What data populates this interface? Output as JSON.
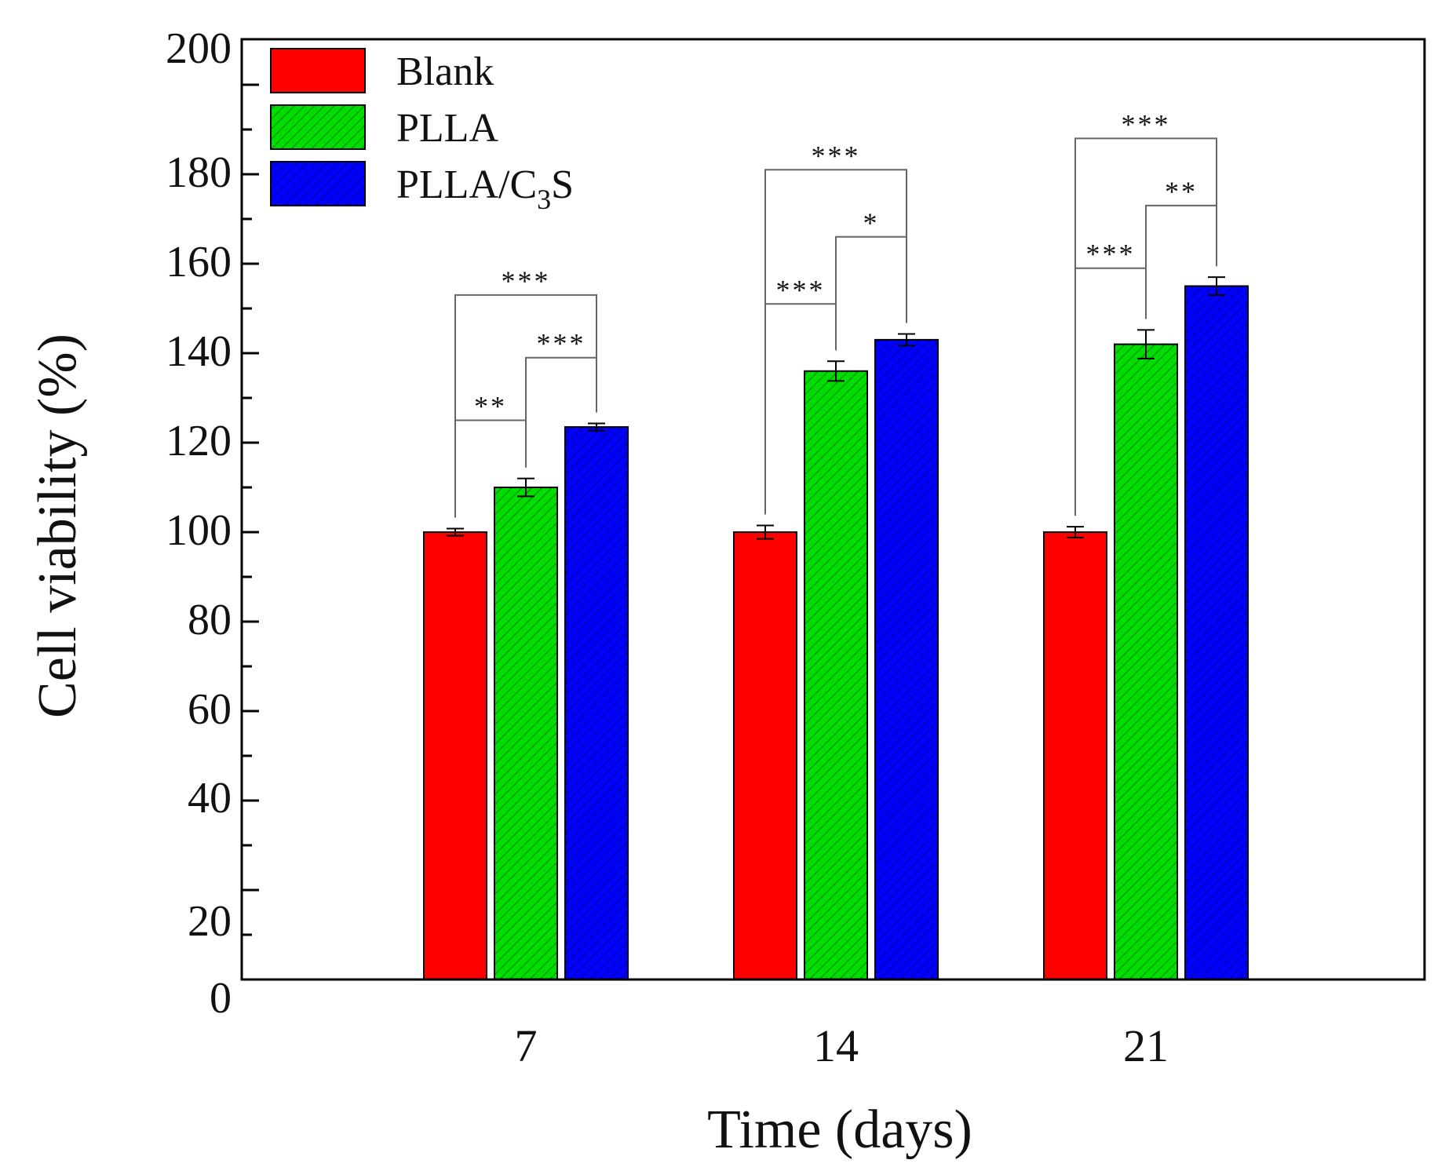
{
  "chart_data": {
    "type": "bar",
    "title": "",
    "xlabel": "Time (days)",
    "ylabel": "Cell viability (%)",
    "ylim": [
      0,
      210
    ],
    "grid": false,
    "legend_position": "top-left",
    "categories": [
      "7",
      "14",
      "21"
    ],
    "y_ticks": [
      {
        "value": 0,
        "label": "0"
      },
      {
        "value": 20,
        "label": "20"
      },
      {
        "value": 40,
        "label": "40"
      },
      {
        "value": 60,
        "label": "60"
      },
      {
        "value": 80,
        "label": "80"
      },
      {
        "value": 100,
        "label": "100"
      },
      {
        "value": 120,
        "label": "120"
      },
      {
        "value": 140,
        "label": "140"
      },
      {
        "value": 160,
        "label": "160"
      },
      {
        "value": 180,
        "label": "180"
      },
      {
        "value": 200,
        "label": "200"
      }
    ],
    "series": [
      {
        "name": "Blank",
        "legend_main": "Blank",
        "legend_sub": "",
        "legend_tail": "",
        "color": "#ff0000",
        "hatch": false,
        "values": [
          100,
          100,
          100
        ],
        "errors": [
          0.8,
          1.5,
          1.2
        ]
      },
      {
        "name": "PLLA",
        "legend_main": "PLLA",
        "legend_sub": "",
        "legend_tail": "",
        "color": "#00dd00",
        "hatch": true,
        "values": [
          110,
          136,
          142
        ],
        "errors": [
          2.0,
          2.2,
          3.2
        ]
      },
      {
        "name": "PLLA/C3S",
        "legend_main": "PLLA/C",
        "legend_sub": "3",
        "legend_tail": "S",
        "color": "#0000ff",
        "hatch": true,
        "values": [
          123.5,
          143,
          155
        ],
        "errors": [
          0.8,
          1.3,
          2.0
        ]
      }
    ],
    "significance": [
      {
        "category": 0,
        "from": 0,
        "to": 1,
        "level": 125,
        "label": "**"
      },
      {
        "category": 0,
        "from": 1,
        "to": 2,
        "level": 139,
        "label": "***"
      },
      {
        "category": 0,
        "from": 0,
        "to": 2,
        "level": 153,
        "label": "***"
      },
      {
        "category": 1,
        "from": 0,
        "to": 1,
        "level": 151,
        "label": "***"
      },
      {
        "category": 1,
        "from": 1,
        "to": 2,
        "level": 166,
        "label": "*"
      },
      {
        "category": 1,
        "from": 0,
        "to": 2,
        "level": 181,
        "label": "***"
      },
      {
        "category": 2,
        "from": 0,
        "to": 1,
        "level": 159,
        "label": "***"
      },
      {
        "category": 2,
        "from": 1,
        "to": 2,
        "level": 173,
        "label": "**"
      },
      {
        "category": 2,
        "from": 0,
        "to": 2,
        "level": 188,
        "label": "***"
      }
    ]
  }
}
